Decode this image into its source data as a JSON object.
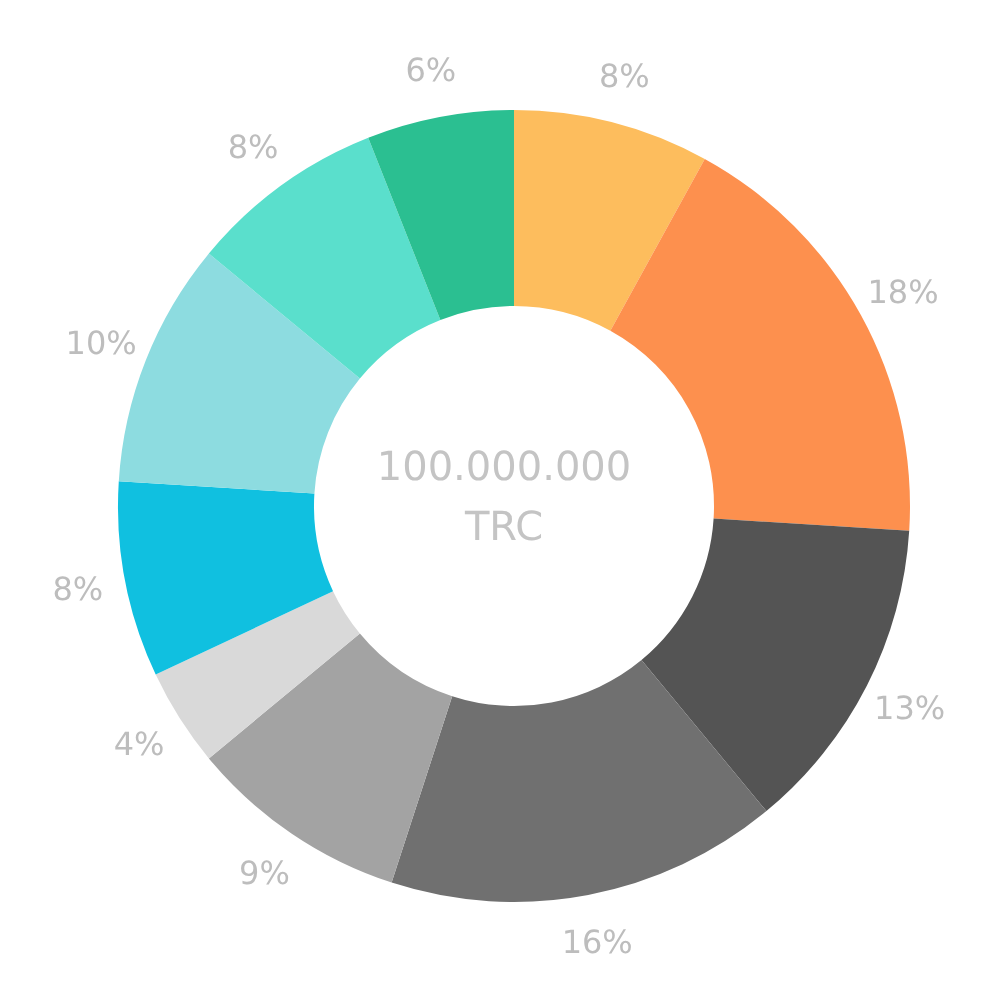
{
  "chart_data": {
    "type": "donut",
    "categories": [
      null,
      null,
      null,
      null,
      null,
      null,
      null,
      null,
      null,
      null
    ],
    "values": [
      8,
      18,
      13,
      16,
      9,
      4,
      8,
      10,
      8,
      6
    ],
    "colors": [
      "#fdbd5d",
      "#fd904e",
      "#545454",
      "#707070",
      "#a3a3a3",
      "#d9d9d9",
      "#10c0e0",
      "#8ddce0",
      "#5adfcc",
      "#2bbf91"
    ],
    "value_labels": [
      "8%",
      "18%",
      "13%",
      "16%",
      "9%",
      "4%",
      "8%",
      "10%",
      "8%",
      "6%"
    ],
    "annotations": [
      "100.000.000",
      "TRC"
    ]
  }
}
